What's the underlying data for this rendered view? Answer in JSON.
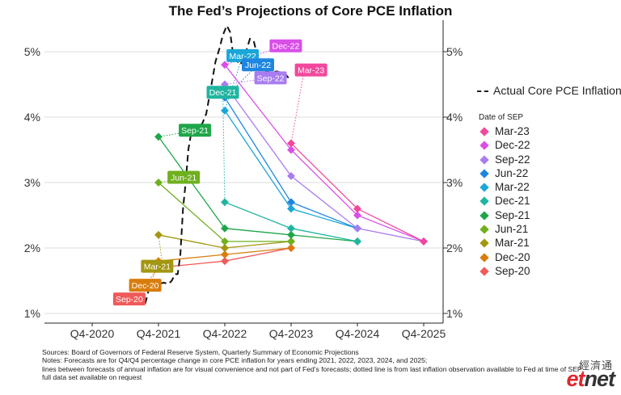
{
  "title": "The Fed’s Projections of Core PCE Inflation",
  "legend": {
    "actual_label": "Actual Core PCE Inflation",
    "sep_title": "Date of SEP"
  },
  "notes": {
    "sources": "Sources:  Board of Governors of Federal Reserve System, Quarterly Summary of Economic Projections",
    "line1": "Notes: Forecasts are for Q4/Q4 percentage change in core PCE inflation for years ending 2021, 2022, 2023, 2024, and 2025;",
    "line2": "lines between forecasts of annual inflation are for visual convenience and not part of Fed’s forecasts; dotted line is from last inflation observation available to Fed at time of SEP;",
    "line3": "full data set available on request"
  },
  "logo": {
    "chinese": "經濟通",
    "brand_e": "et",
    "brand_rest": "net"
  },
  "chart_data": {
    "type": "line",
    "x_categories": [
      "Q4-2020",
      "Q4-2021",
      "Q4-2022",
      "Q4-2023",
      "Q4-2024",
      "Q4-2025"
    ],
    "y_ticks": [
      "1%",
      "2%",
      "3%",
      "4%",
      "5%"
    ],
    "ylim": [
      1,
      5.4
    ],
    "y_unit": "%",
    "grid": true,
    "legend_position": "right",
    "actual": {
      "name": "Actual Core PCE Inflation",
      "color": "#111111",
      "points": [
        [
          2020.8,
          1.15
        ],
        [
          2020.85,
          1.35
        ],
        [
          2020.92,
          1.45
        ],
        [
          2020.97,
          1.4
        ],
        [
          2021.0,
          1.45
        ],
        [
          2021.08,
          1.47
        ],
        [
          2021.15,
          1.45
        ],
        [
          2021.2,
          1.5
        ],
        [
          2021.25,
          1.6
        ],
        [
          2021.29,
          1.6
        ],
        [
          2021.33,
          1.9
        ],
        [
          2021.37,
          2.6
        ],
        [
          2021.41,
          3.0
        ],
        [
          2021.45,
          3.5
        ],
        [
          2021.5,
          3.8
        ],
        [
          2021.58,
          3.85
        ],
        [
          2021.66,
          3.9
        ],
        [
          2021.72,
          4.05
        ],
        [
          2021.8,
          4.5
        ],
        [
          2021.86,
          4.85
        ],
        [
          2021.92,
          5.05
        ],
        [
          2021.97,
          5.25
        ],
        [
          2022.03,
          5.4
        ],
        [
          2022.08,
          5.3
        ],
        [
          2022.12,
          5.0
        ],
        [
          2022.17,
          4.9
        ],
        [
          2022.22,
          4.8
        ],
        [
          2022.27,
          4.85
        ],
        [
          2022.32,
          5.0
        ],
        [
          2022.38,
          5.2
        ],
        [
          2022.44,
          5.15
        ],
        [
          2022.5,
          4.9
        ],
        [
          2022.56,
          4.75
        ],
        [
          2022.63,
          4.7
        ],
        [
          2022.7,
          4.68
        ],
        [
          2022.78,
          4.7
        ],
        [
          2022.85,
          4.68
        ],
        [
          2022.92,
          4.65
        ],
        [
          2022.96,
          4.6
        ]
      ]
    },
    "series": [
      {
        "name": "Sep-20",
        "color": "#f05a5a",
        "label_x": 2020.56,
        "label_y": 1.22,
        "anchor": [
          2020.63,
          1.2
        ],
        "points": [
          [
            2021.0,
            1.7
          ],
          [
            2022.0,
            1.8
          ],
          [
            2023.0,
            2.0
          ]
        ]
      },
      {
        "name": "Dec-20",
        "color": "#d97c0c",
        "label_x": 2020.8,
        "label_y": 1.43,
        "anchor": [
          2020.88,
          1.43
        ],
        "points": [
          [
            2021.0,
            1.8
          ],
          [
            2022.0,
            1.9
          ],
          [
            2023.0,
            2.0
          ]
        ]
      },
      {
        "name": "Mar-21",
        "color": "#a39610",
        "label_x": 2020.98,
        "label_y": 1.72,
        "anchor": [
          2021.06,
          1.75
        ],
        "points": [
          [
            2021.0,
            2.2
          ],
          [
            2022.0,
            2.0
          ],
          [
            2023.0,
            2.1
          ]
        ]
      },
      {
        "name": "Jun-21",
        "color": "#6fb01f",
        "label_x": 2021.38,
        "label_y": 3.08,
        "anchor": [
          2021.48,
          3.08
        ],
        "points": [
          [
            2021.0,
            3.0
          ],
          [
            2022.0,
            2.1
          ],
          [
            2023.0,
            2.1
          ]
        ]
      },
      {
        "name": "Sep-21",
        "color": "#1fa64a",
        "label_x": 2021.55,
        "label_y": 3.8,
        "anchor": [
          2021.6,
          3.8
        ],
        "points": [
          [
            2021.0,
            3.7
          ],
          [
            2022.0,
            2.3
          ],
          [
            2023.0,
            2.2
          ],
          [
            2024.0,
            2.1
          ]
        ]
      },
      {
        "name": "Dec-21",
        "color": "#20b5a0",
        "label_x": 2021.97,
        "label_y": 4.38,
        "anchor": [
          2021.97,
          4.38
        ],
        "points": [
          [
            2022.0,
            2.7
          ],
          [
            2023.0,
            2.3
          ],
          [
            2024.0,
            2.1
          ]
        ]
      },
      {
        "name": "Mar-22",
        "color": "#1aa6d8",
        "label_x": 2022.27,
        "label_y": 4.94,
        "anchor": [
          2022.27,
          4.94
        ],
        "points": [
          [
            2022.0,
            4.1
          ],
          [
            2023.0,
            2.6
          ],
          [
            2024.0,
            2.3
          ]
        ]
      },
      {
        "name": "Jun-22",
        "color": "#1f86e0",
        "label_x": 2022.5,
        "label_y": 4.8,
        "anchor": [
          2022.5,
          4.8
        ],
        "points": [
          [
            2022.0,
            4.3
          ],
          [
            2023.0,
            2.7
          ],
          [
            2024.0,
            2.3
          ]
        ]
      },
      {
        "name": "Sep-22",
        "color": "#a97cf0",
        "label_x": 2022.69,
        "label_y": 4.6,
        "anchor": [
          2022.69,
          4.6
        ],
        "points": [
          [
            2022.0,
            4.5
          ],
          [
            2023.0,
            3.1
          ],
          [
            2024.0,
            2.3
          ],
          [
            2025.0,
            2.1
          ]
        ]
      },
      {
        "name": "Dec-22",
        "color": "#d94fe8",
        "label_x": 2022.92,
        "label_y": 5.09,
        "anchor": [
          2022.92,
          5.09
        ],
        "points": [
          [
            2022.0,
            4.8
          ],
          [
            2023.0,
            3.5
          ],
          [
            2024.0,
            2.5
          ],
          [
            2025.0,
            2.1
          ]
        ]
      },
      {
        "name": "Mar-23",
        "color": "#f2479c",
        "label_x": 2023.3,
        "label_y": 4.72,
        "anchor": [
          2023.2,
          4.72
        ],
        "points": [
          [
            2023.0,
            3.6
          ],
          [
            2024.0,
            2.6
          ],
          [
            2025.0,
            2.1
          ]
        ]
      }
    ],
    "legend_order": [
      "Mar-23",
      "Dec-22",
      "Sep-22",
      "Jun-22",
      "Mar-22",
      "Dec-21",
      "Sep-21",
      "Jun-21",
      "Mar-21",
      "Dec-20",
      "Sep-20"
    ]
  }
}
